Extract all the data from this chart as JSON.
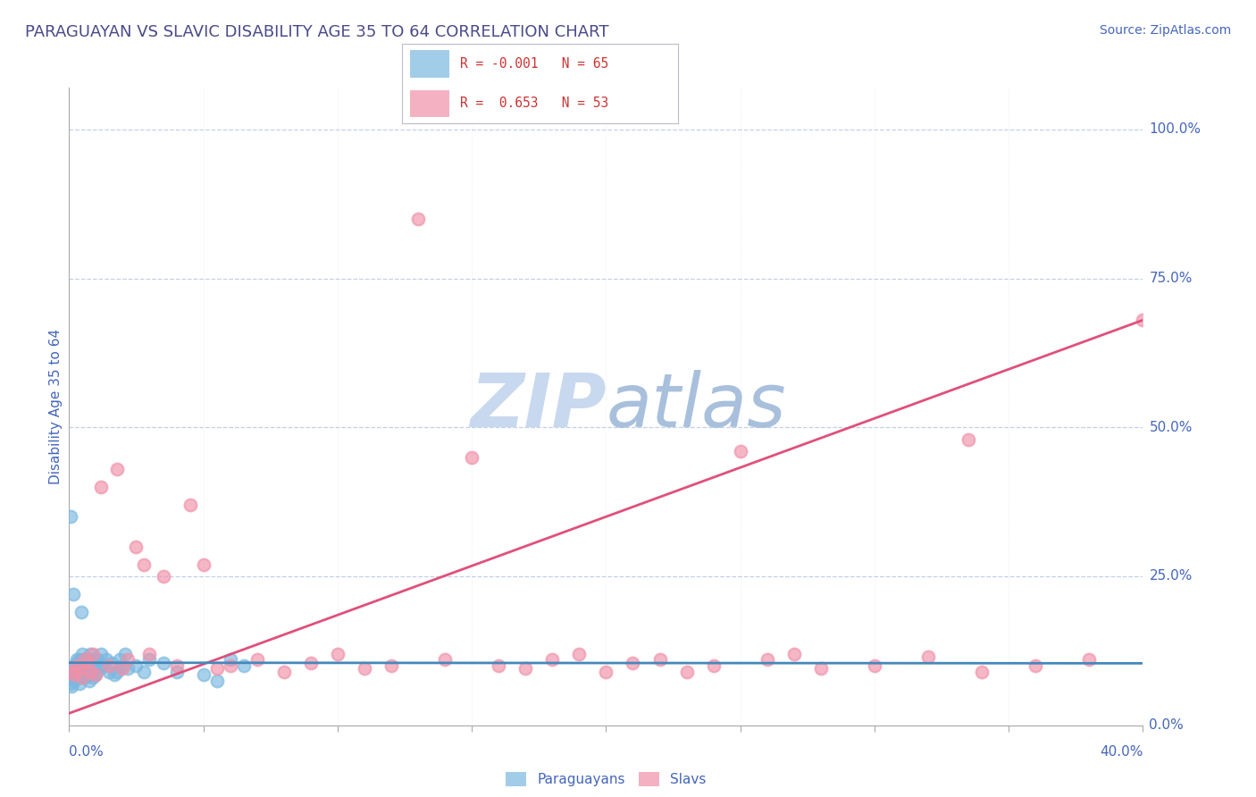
{
  "title": "PARAGUAYAN VS SLAVIC DISABILITY AGE 35 TO 64 CORRELATION CHART",
  "source_text": "Source: ZipAtlas.com",
  "ylabel": "Disability Age 35 to 64",
  "legend_labels_bottom": [
    "Paraguayans",
    "Slavs"
  ],
  "paraguayan_color": "#7ab8e0",
  "slavic_color": "#f090a8",
  "paraguayan_line_color": "#4488bb",
  "slavic_line_color": "#e0507a",
  "title_color": "#4a4a8a",
  "axis_label_color": "#4466bb",
  "grid_color": "#c0d0e8",
  "watermark_zip_color": "#c8d8ee",
  "watermark_atlas_color": "#a8c0dc",
  "xmin": 0.0,
  "xmax": 40.0,
  "ymin": 0.0,
  "ymax": 107.0,
  "ytick_values": [
    0.0,
    25.0,
    50.0,
    75.0,
    100.0
  ],
  "slavic_line_x0": 0.0,
  "slavic_line_y0": 2.0,
  "slavic_line_x1": 40.0,
  "slavic_line_y1": 68.0,
  "paraguayan_line_x0": 0.0,
  "paraguayan_line_y0": 10.5,
  "paraguayan_line_x1": 40.0,
  "paraguayan_line_y1": 10.4,
  "par_x": [
    0.05,
    0.08,
    0.1,
    0.12,
    0.15,
    0.18,
    0.2,
    0.22,
    0.25,
    0.28,
    0.3,
    0.32,
    0.35,
    0.38,
    0.4,
    0.42,
    0.45,
    0.48,
    0.5,
    0.52,
    0.55,
    0.58,
    0.6,
    0.62,
    0.65,
    0.68,
    0.7,
    0.72,
    0.75,
    0.78,
    0.8,
    0.82,
    0.85,
    0.88,
    0.9,
    0.92,
    0.95,
    0.98,
    1.0,
    1.05,
    1.1,
    1.15,
    1.2,
    1.3,
    1.4,
    1.5,
    1.6,
    1.7,
    1.8,
    1.9,
    2.0,
    2.1,
    2.2,
    2.5,
    2.8,
    3.0,
    3.5,
    4.0,
    5.0,
    5.5,
    6.0,
    6.5,
    0.06,
    0.16,
    0.45
  ],
  "par_y": [
    7.0,
    8.0,
    6.5,
    9.0,
    8.5,
    7.5,
    10.0,
    9.5,
    8.0,
    11.0,
    10.5,
    9.0,
    8.5,
    7.0,
    11.0,
    10.0,
    9.5,
    8.0,
    12.0,
    11.0,
    9.0,
    10.5,
    8.0,
    9.0,
    11.0,
    10.0,
    9.5,
    8.5,
    7.5,
    12.0,
    11.0,
    9.0,
    10.0,
    8.0,
    9.5,
    11.0,
    10.0,
    9.0,
    8.5,
    11.0,
    10.0,
    9.5,
    12.0,
    10.0,
    11.0,
    9.0,
    10.5,
    8.5,
    9.0,
    11.0,
    10.0,
    12.0,
    9.5,
    10.0,
    9.0,
    11.0,
    10.5,
    9.0,
    8.5,
    7.5,
    11.0,
    10.0,
    35.0,
    22.0,
    19.0
  ],
  "slav_x": [
    0.1,
    0.2,
    0.3,
    0.4,
    0.5,
    0.6,
    0.7,
    0.8,
    0.9,
    1.0,
    1.2,
    1.5,
    1.8,
    2.0,
    2.2,
    2.5,
    2.8,
    3.0,
    3.5,
    4.0,
    4.5,
    5.0,
    5.5,
    6.0,
    7.0,
    8.0,
    9.0,
    10.0,
    11.0,
    12.0,
    14.0,
    15.0,
    16.0,
    17.0,
    18.0,
    19.0,
    20.0,
    21.0,
    22.0,
    23.0,
    24.0,
    25.0,
    26.0,
    27.0,
    28.0,
    30.0,
    32.0,
    34.0,
    36.0,
    38.0,
    40.0,
    13.0,
    33.5
  ],
  "slav_y": [
    9.0,
    8.5,
    10.0,
    9.5,
    8.0,
    11.0,
    10.5,
    9.0,
    12.0,
    8.5,
    40.0,
    10.0,
    43.0,
    9.5,
    11.0,
    30.0,
    27.0,
    12.0,
    25.0,
    10.0,
    37.0,
    27.0,
    9.5,
    10.0,
    11.0,
    9.0,
    10.5,
    12.0,
    9.5,
    10.0,
    11.0,
    45.0,
    10.0,
    9.5,
    11.0,
    12.0,
    9.0,
    10.5,
    11.0,
    9.0,
    10.0,
    46.0,
    11.0,
    12.0,
    9.5,
    10.0,
    11.5,
    9.0,
    10.0,
    11.0,
    68.0,
    85.0,
    48.0
  ]
}
